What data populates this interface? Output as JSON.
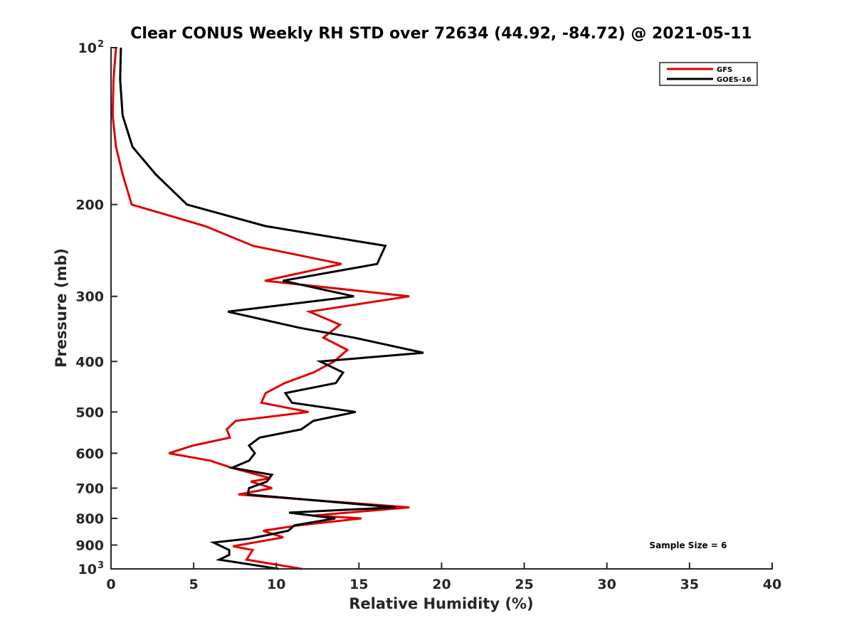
{
  "chart_data": {
    "type": "line",
    "title": "Clear CONUS Weekly RH STD over 72634 (44.92, -84.72) @ 2021-05-11",
    "xlabel": "Relative Humidity (%)",
    "ylabel": "Pressure (mb)",
    "xlim": [
      0,
      40
    ],
    "ylim": [
      100,
      1000
    ],
    "yscale": "log",
    "yreversed": true,
    "grid": false,
    "x_ticks": [
      0,
      5,
      10,
      15,
      20,
      25,
      30,
      35,
      40
    ],
    "x_tick_labels": [
      "0",
      "5",
      "10",
      "15",
      "20",
      "25",
      "30",
      "35",
      "40"
    ],
    "y_ticks": [
      100,
      200,
      300,
      400,
      500,
      600,
      700,
      800,
      900,
      1000
    ],
    "y_tick_labels": [
      "10",
      "200",
      "300",
      "400",
      "500",
      "600",
      "700",
      "800",
      "900",
      "10"
    ],
    "y_tick_superscripts": {
      "100": "2",
      "1000": "3"
    },
    "legend": {
      "placement": "top-right",
      "entries": [
        {
          "name": "GFS",
          "color": "#e00000"
        },
        {
          "name": "GOES-16",
          "color": "#000000"
        }
      ]
    },
    "annotation": "Sample Size = 6",
    "annotation_placement": "bottom-right",
    "series": [
      {
        "name": "GFS",
        "color": "#e00000",
        "points": [
          {
            "p": 100,
            "rh": 0.3
          },
          {
            "p": 115,
            "rh": 0.15
          },
          {
            "p": 135,
            "rh": 0.1
          },
          {
            "p": 155,
            "rh": 0.3
          },
          {
            "p": 175,
            "rh": 0.7
          },
          {
            "p": 200,
            "rh": 1.25
          },
          {
            "p": 220,
            "rh": 5.7
          },
          {
            "p": 240,
            "rh": 8.6
          },
          {
            "p": 260,
            "rh": 13.95
          },
          {
            "p": 280,
            "rh": 9.3
          },
          {
            "p": 300,
            "rh": 18.05
          },
          {
            "p": 321,
            "rh": 12.0
          },
          {
            "p": 340,
            "rh": 13.85
          },
          {
            "p": 360,
            "rh": 12.85
          },
          {
            "p": 380,
            "rh": 14.3
          },
          {
            "p": 400,
            "rh": 13.5
          },
          {
            "p": 420,
            "rh": 12.25
          },
          {
            "p": 440,
            "rh": 10.5
          },
          {
            "p": 460,
            "rh": 9.35
          },
          {
            "p": 480,
            "rh": 9.1
          },
          {
            "p": 500,
            "rh": 11.95
          },
          {
            "p": 520,
            "rh": 7.55
          },
          {
            "p": 540,
            "rh": 7.0
          },
          {
            "p": 560,
            "rh": 7.2
          },
          {
            "p": 580,
            "rh": 4.95
          },
          {
            "p": 600,
            "rh": 3.5
          },
          {
            "p": 620,
            "rh": 6.0
          },
          {
            "p": 640,
            "rh": 7.32
          },
          {
            "p": 670,
            "rh": 9.65
          },
          {
            "p": 680,
            "rh": 8.45
          },
          {
            "p": 700,
            "rh": 9.75
          },
          {
            "p": 720,
            "rh": 7.7
          },
          {
            "p": 762,
            "rh": 18.05
          },
          {
            "p": 790,
            "rh": 12.25
          },
          {
            "p": 800,
            "rh": 15.15
          },
          {
            "p": 825,
            "rh": 11.35
          },
          {
            "p": 845,
            "rh": 9.2
          },
          {
            "p": 870,
            "rh": 10.42
          },
          {
            "p": 905,
            "rh": 7.37
          },
          {
            "p": 920,
            "rh": 8.57
          },
          {
            "p": 960,
            "rh": 8.2
          },
          {
            "p": 1000,
            "rh": 11.55
          }
        ]
      },
      {
        "name": "GOES-16",
        "color": "#000000",
        "points": [
          {
            "p": 100,
            "rh": 0.6
          },
          {
            "p": 115,
            "rh": 0.55
          },
          {
            "p": 135,
            "rh": 0.7
          },
          {
            "p": 155,
            "rh": 1.3
          },
          {
            "p": 175,
            "rh": 2.7
          },
          {
            "p": 200,
            "rh": 4.6
          },
          {
            "p": 220,
            "rh": 9.35
          },
          {
            "p": 240,
            "rh": 16.6
          },
          {
            "p": 260,
            "rh": 16.1
          },
          {
            "p": 280,
            "rh": 10.4
          },
          {
            "p": 300,
            "rh": 14.7
          },
          {
            "p": 321,
            "rh": 7.07
          },
          {
            "p": 345,
            "rh": 11.45
          },
          {
            "p": 360,
            "rh": 14.7
          },
          {
            "p": 385,
            "rh": 18.9
          },
          {
            "p": 400,
            "rh": 12.65
          },
          {
            "p": 420,
            "rh": 14.04
          },
          {
            "p": 440,
            "rh": 13.6
          },
          {
            "p": 460,
            "rh": 10.55
          },
          {
            "p": 480,
            "rh": 10.95
          },
          {
            "p": 500,
            "rh": 14.8
          },
          {
            "p": 520,
            "rh": 12.25
          },
          {
            "p": 540,
            "rh": 11.5
          },
          {
            "p": 560,
            "rh": 8.99
          },
          {
            "p": 580,
            "rh": 8.35
          },
          {
            "p": 600,
            "rh": 8.7
          },
          {
            "p": 620,
            "rh": 8.35
          },
          {
            "p": 640,
            "rh": 7.32
          },
          {
            "p": 660,
            "rh": 9.73
          },
          {
            "p": 680,
            "rh": 9.43
          },
          {
            "p": 700,
            "rh": 8.35
          },
          {
            "p": 720,
            "rh": 8.27
          },
          {
            "p": 762,
            "rh": 17.2
          },
          {
            "p": 780,
            "rh": 10.77
          },
          {
            "p": 800,
            "rh": 13.57
          },
          {
            "p": 825,
            "rh": 11.1
          },
          {
            "p": 845,
            "rh": 10.72
          },
          {
            "p": 860,
            "rh": 9.56
          },
          {
            "p": 875,
            "rh": 8.35
          },
          {
            "p": 890,
            "rh": 6.2
          },
          {
            "p": 920,
            "rh": 7.15
          },
          {
            "p": 940,
            "rh": 7.15
          },
          {
            "p": 960,
            "rh": 6.55
          },
          {
            "p": 1000,
            "rh": 10.15
          }
        ]
      }
    ]
  }
}
